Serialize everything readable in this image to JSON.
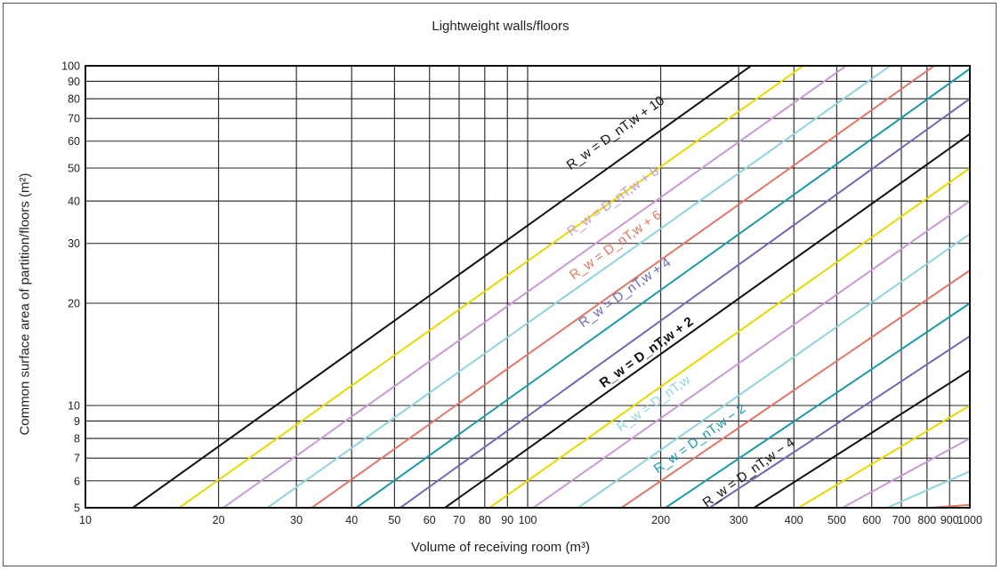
{
  "chart_data": {
    "type": "line",
    "title": "Lightweight walls/floors",
    "xlabel": "Volume of receiving room (m³)",
    "ylabel": "Common surface area of partition/floors (m²)",
    "x_scale": "log",
    "y_scale": "log",
    "xlim": [
      10,
      1000
    ],
    "ylim": [
      5,
      100
    ],
    "grid": true,
    "x_ticks": [
      10,
      20,
      30,
      40,
      50,
      60,
      70,
      80,
      90,
      100,
      200,
      300,
      400,
      500,
      600,
      700,
      800,
      900,
      1000
    ],
    "x_tick_labels": [
      "10",
      "20",
      "30",
      "40",
      "50",
      "60",
      "70",
      "80",
      "90",
      "100",
      "200",
      "300",
      "400",
      "500",
      "600",
      "700",
      "800",
      "900",
      "1000"
    ],
    "y_ticks": [
      5,
      6,
      7,
      8,
      9,
      10,
      20,
      30,
      40,
      50,
      60,
      70,
      80,
      90,
      100
    ],
    "y_tick_labels": [
      "5",
      "6",
      "7",
      "8",
      "9",
      "10",
      "20",
      "30",
      "40",
      "50",
      "60",
      "70",
      "80",
      "90",
      "100"
    ],
    "series": [
      {
        "name": "R_w = D_nT,w + 10",
        "offset": 10,
        "color": "#111111",
        "x": [
          12.8,
          320
        ],
        "y": [
          5,
          100
        ]
      },
      {
        "name": "",
        "offset": 9.5,
        "color": "#e8d800",
        "x": [
          16.3,
          420
        ],
        "y": [
          5,
          100
        ]
      },
      {
        "name": "R_w = D_nT,w + 8",
        "offset": 9,
        "color": "#c79ad2",
        "x": [
          20.5,
          525
        ],
        "y": [
          5,
          100
        ]
      },
      {
        "name": "",
        "offset": 8.5,
        "color": "#8fd4dd",
        "x": [
          25.8,
          660
        ],
        "y": [
          5,
          100
        ]
      },
      {
        "name": "R_w = D_nT,w + 6",
        "offset": 8,
        "color": "#e07765",
        "x": [
          32.5,
          830
        ],
        "y": [
          5,
          100
        ]
      },
      {
        "name": "",
        "offset": 7.5,
        "color": "#1b99a8",
        "x": [
          41,
          1000
        ],
        "y": [
          5,
          98
        ]
      },
      {
        "name": "R_w = D_nT,w + 4",
        "offset": 7,
        "color": "#6a6ab5",
        "x": [
          51.5,
          1000
        ],
        "y": [
          5,
          80
        ]
      },
      {
        "name": "",
        "offset": 6.5,
        "color": "#111111",
        "x": [
          65,
          1000
        ],
        "y": [
          5,
          63
        ]
      },
      {
        "name": "R_w = D_nT,w + 2",
        "offset": 6,
        "color": "#e8d800",
        "x": [
          82,
          1000
        ],
        "y": [
          5,
          50
        ]
      },
      {
        "name": "",
        "offset": 5.5,
        "color": "#c79ad2",
        "x": [
          103,
          1000
        ],
        "y": [
          5,
          40
        ]
      },
      {
        "name": "R_w = D_nT,w",
        "offset": 5,
        "color": "#8fd4dd",
        "x": [
          130,
          1000
        ],
        "y": [
          5,
          32
        ]
      },
      {
        "name": "",
        "offset": 4.5,
        "color": "#e07765",
        "x": [
          163,
          1000
        ],
        "y": [
          5,
          25
        ]
      },
      {
        "name": "R_w = D_nT,w − 2",
        "offset": 4,
        "color": "#1b99a8",
        "x": [
          205,
          1000
        ],
        "y": [
          5,
          20
        ]
      },
      {
        "name": "",
        "offset": 3.5,
        "color": "#6a6ab5",
        "x": [
          258,
          1000
        ],
        "y": [
          5,
          16
        ]
      },
      {
        "name": "R_w = D_nT,w − 4",
        "offset": 3,
        "color": "#111111",
        "x": [
          325,
          1000
        ],
        "y": [
          5,
          12.7
        ]
      },
      {
        "name": "",
        "offset": 2.5,
        "color": "#e8d800",
        "x": [
          410,
          1000
        ],
        "y": [
          5,
          10
        ]
      },
      {
        "name": "",
        "offset": 2,
        "color": "#c79ad2",
        "x": [
          515,
          1000
        ],
        "y": [
          5,
          8
        ]
      },
      {
        "name": "",
        "offset": 1.5,
        "color": "#8fd4dd",
        "x": [
          650,
          1000
        ],
        "y": [
          5,
          6.4
        ]
      },
      {
        "name": "",
        "offset": 1,
        "color": "#e07765",
        "x": [
          815,
          1000
        ],
        "y": [
          5,
          5.1
        ]
      }
    ],
    "annotations": [
      {
        "label": "R_w = D_nT,w + 10",
        "at_x": 160,
        "at_y": 62,
        "color": "#111111",
        "bold": false
      },
      {
        "label": "R_w = D_nT,w + 8",
        "at_x": 158,
        "at_y": 39,
        "color": "#c79ad2",
        "bold": false
      },
      {
        "label": "R_w = D_nT,w + 6",
        "at_x": 160,
        "at_y": 29,
        "color": "#e07765",
        "bold": false
      },
      {
        "label": "R_w = D_nT,w + 4",
        "at_x": 168,
        "at_y": 21,
        "color": "#6a6ab5",
        "bold": false
      },
      {
        "label": "R_w = D_nT,w + 2",
        "at_x": 188,
        "at_y": 14,
        "color": "#111111",
        "bold": true
      },
      {
        "label": "R_w = D_nT,w",
        "at_x": 195,
        "at_y": 9.9,
        "color": "#8fd4dd",
        "bold": false
      },
      {
        "label": "R_w = D_nT,w − 2",
        "at_x": 248,
        "at_y": 7.8,
        "color": "#1b99a8",
        "bold": false
      },
      {
        "label": "R_w = D_nT,w − 4",
        "at_x": 320,
        "at_y": 6.2,
        "color": "#111111",
        "bold": false
      }
    ]
  }
}
